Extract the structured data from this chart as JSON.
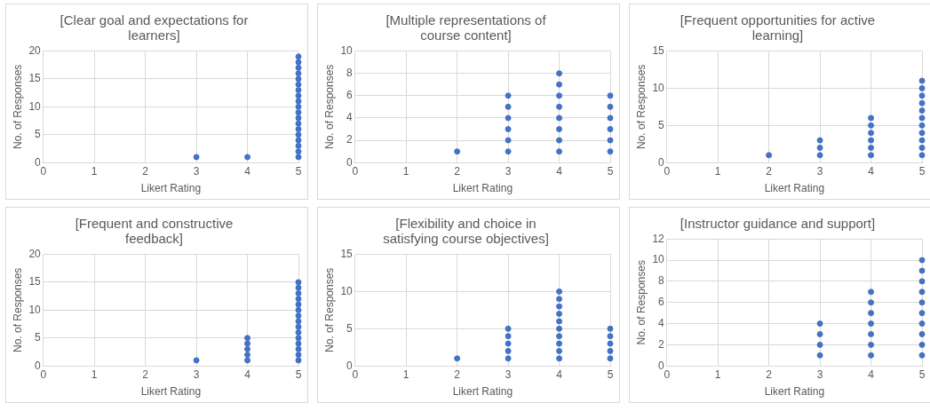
{
  "chart_data": [
    {
      "type": "scatter",
      "title": "[Clear goal and expectations for learners]",
      "xlabel": "Likert Rating",
      "ylabel": "No. of Responses",
      "xlim": [
        0,
        5
      ],
      "xticks": [
        0,
        1,
        2,
        3,
        4,
        5
      ],
      "ylim": [
        0,
        20
      ],
      "yticks": [
        0,
        5,
        10,
        15,
        20
      ],
      "grid": true,
      "marker": "circle",
      "legend": false,
      "series": [
        {
          "color": "#4472c4",
          "x": [
            3,
            4,
            5,
            5,
            5,
            5,
            5,
            5,
            5,
            5,
            5,
            5,
            5,
            5,
            5,
            5,
            5,
            5,
            5,
            5,
            5
          ],
          "values": [
            1,
            1,
            1,
            2,
            3,
            4,
            5,
            6,
            7,
            8,
            9,
            10,
            11,
            12,
            13,
            14,
            15,
            16,
            17,
            18,
            19
          ]
        }
      ]
    },
    {
      "type": "scatter",
      "title": "[Multiple representations of course content]",
      "xlabel": "Likert Rating",
      "ylabel": "No. of Responses",
      "xlim": [
        0,
        5
      ],
      "xticks": [
        0,
        1,
        2,
        3,
        4,
        5
      ],
      "ylim": [
        0,
        10
      ],
      "yticks": [
        0,
        2,
        4,
        6,
        8,
        10
      ],
      "grid": true,
      "marker": "circle",
      "legend": false,
      "series": [
        {
          "color": "#4472c4",
          "x": [
            2,
            3,
            3,
            3,
            3,
            3,
            3,
            4,
            4,
            4,
            4,
            4,
            4,
            4,
            4,
            5,
            5,
            5,
            5,
            5,
            5
          ],
          "values": [
            1,
            1,
            2,
            3,
            4,
            5,
            6,
            1,
            2,
            3,
            4,
            5,
            6,
            7,
            8,
            1,
            2,
            3,
            4,
            5,
            6
          ]
        }
      ]
    },
    {
      "type": "scatter",
      "title": "[Frequent opportunities for active learning]",
      "xlabel": "Likert Rating",
      "ylabel": "No. of Responses",
      "xlim": [
        0,
        5
      ],
      "xticks": [
        0,
        1,
        2,
        3,
        4,
        5
      ],
      "ylim": [
        0,
        15
      ],
      "yticks": [
        0,
        5,
        10,
        15
      ],
      "grid": true,
      "marker": "circle",
      "legend": false,
      "series": [
        {
          "color": "#4472c4",
          "x": [
            2,
            3,
            3,
            3,
            4,
            4,
            4,
            4,
            4,
            4,
            5,
            5,
            5,
            5,
            5,
            5,
            5,
            5,
            5,
            5,
            5
          ],
          "values": [
            1,
            1,
            2,
            3,
            1,
            2,
            3,
            4,
            5,
            6,
            1,
            2,
            3,
            4,
            5,
            6,
            7,
            8,
            9,
            10,
            11
          ]
        }
      ]
    },
    {
      "type": "scatter",
      "title": "[Frequent and constructive feedback]",
      "xlabel": "Likert Rating",
      "ylabel": "No. of Responses",
      "xlim": [
        0,
        5
      ],
      "xticks": [
        0,
        1,
        2,
        3,
        4,
        5
      ],
      "ylim": [
        0,
        20
      ],
      "yticks": [
        0,
        5,
        10,
        15,
        20
      ],
      "grid": true,
      "marker": "circle",
      "legend": false,
      "series": [
        {
          "color": "#4472c4",
          "x": [
            3,
            4,
            4,
            4,
            4,
            4,
            5,
            5,
            5,
            5,
            5,
            5,
            5,
            5,
            5,
            5,
            5,
            5,
            5,
            5,
            5
          ],
          "values": [
            1,
            1,
            2,
            3,
            4,
            5,
            1,
            2,
            3,
            4,
            5,
            6,
            7,
            8,
            9,
            10,
            11,
            12,
            13,
            14,
            15
          ]
        }
      ]
    },
    {
      "type": "scatter",
      "title": "[Flexibility and choice in satisfying course objectives]",
      "xlabel": "Likert Rating",
      "ylabel": "No. of Responses",
      "xlim": [
        0,
        5
      ],
      "xticks": [
        0,
        1,
        2,
        3,
        4,
        5
      ],
      "ylim": [
        0,
        15
      ],
      "yticks": [
        0,
        5,
        10,
        15
      ],
      "grid": true,
      "marker": "circle",
      "legend": false,
      "series": [
        {
          "color": "#4472c4",
          "x": [
            2,
            3,
            3,
            3,
            3,
            3,
            4,
            4,
            4,
            4,
            4,
            4,
            4,
            4,
            4,
            4,
            5,
            5,
            5,
            5,
            5
          ],
          "values": [
            1,
            1,
            2,
            3,
            4,
            5,
            1,
            2,
            3,
            4,
            5,
            6,
            7,
            8,
            9,
            10,
            1,
            2,
            3,
            4,
            5
          ]
        }
      ]
    },
    {
      "type": "scatter",
      "title": "[Instructor guidance and support]",
      "xlabel": "Likert Rating",
      "ylabel": "No. of Responses",
      "xlim": [
        0,
        5
      ],
      "xticks": [
        0,
        1,
        2,
        3,
        4,
        5
      ],
      "ylim": [
        0,
        12
      ],
      "yticks": [
        0,
        2,
        4,
        6,
        8,
        10,
        12
      ],
      "grid": true,
      "marker": "circle",
      "legend": false,
      "series": [
        {
          "color": "#4472c4",
          "x": [
            3,
            3,
            3,
            3,
            4,
            4,
            4,
            4,
            4,
            4,
            4,
            5,
            5,
            5,
            5,
            5,
            5,
            5,
            5,
            5,
            5
          ],
          "values": [
            1,
            2,
            3,
            4,
            1,
            2,
            3,
            4,
            5,
            6,
            7,
            1,
            2,
            3,
            4,
            5,
            6,
            7,
            8,
            9,
            10
          ]
        }
      ]
    }
  ]
}
